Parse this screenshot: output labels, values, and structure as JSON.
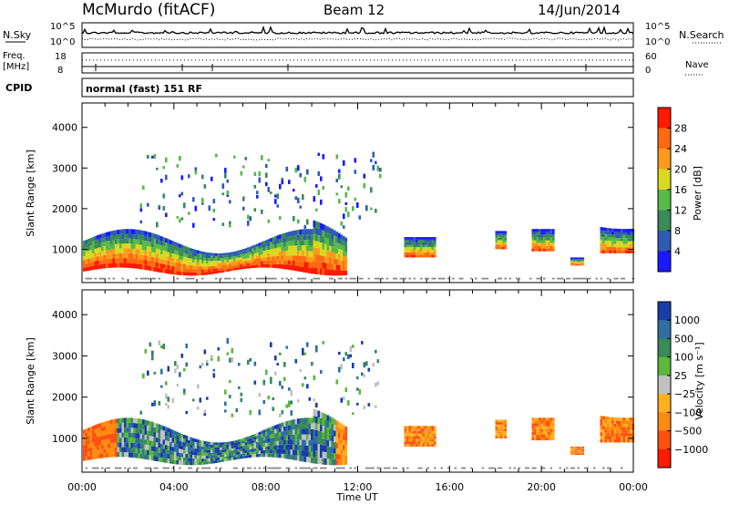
{
  "header": {
    "station": "McMurdo (fitACF)",
    "beam": "Beam 12",
    "date": "14/Jun/2014"
  },
  "top_panels": {
    "nsky_label": "N.Sky",
    "nsky_ticks": [
      "10^5",
      "10^0"
    ],
    "nsearch_label": "N.Search",
    "nsearch_ticks": [
      "10^5",
      "10^0"
    ],
    "freq_label": "Freq.",
    "freq_unit": "[MHz]",
    "freq_ticks": [
      "18",
      "8"
    ],
    "nave_label": "Nave",
    "nave_ticks": [
      "60",
      "0"
    ],
    "cpid_label": "CPID",
    "cpid_text": "normal (fast) 151 RF"
  },
  "chart_data": [
    {
      "type": "heatmap",
      "quantity": "Power",
      "ylabel": "Slant Range [km]",
      "yticks": [
        1000,
        2000,
        3000,
        4000
      ],
      "ylim": [
        180,
        4600
      ],
      "xlim_hours": [
        0,
        24
      ],
      "colorbar_label": "Power [dB]",
      "colorbar_ticks": [
        "4",
        "8",
        "12",
        "16",
        "20",
        "24",
        "28"
      ],
      "colorbar_colors": [
        "#1a1aff",
        "#2e5bb4",
        "#3a8a5a",
        "#58b84a",
        "#d8d820",
        "#ff9a1a",
        "#ff6a10",
        "#ff1a00"
      ]
    },
    {
      "type": "heatmap",
      "quantity": "Velocity",
      "ylabel": "Slant Range [km]",
      "yticks": [
        1000,
        2000,
        3000,
        4000
      ],
      "ylim": [
        180,
        4600
      ],
      "xlim_hours": [
        0,
        24
      ],
      "colorbar_label": "Velocity [m s⁻¹]",
      "colorbar_ticks": [
        "1000",
        "500",
        "100",
        "25",
        "−25",
        "−100",
        "−500",
        "−1000"
      ],
      "colorbar_colors": [
        "#1a3ca8",
        "#2e6ea0",
        "#3a8a5a",
        "#5ab83a",
        "#c0c0c0",
        "#ffb020",
        "#ff8a10",
        "#ff5010",
        "#ff1a00"
      ]
    }
  ],
  "xaxis": {
    "ticks": [
      "00:00",
      "04:00",
      "08:00",
      "12:00",
      "16:00",
      "20:00",
      "00:00"
    ],
    "label": "Time UT"
  },
  "colors": {
    "ground_scatter": "#8a8a8a"
  }
}
